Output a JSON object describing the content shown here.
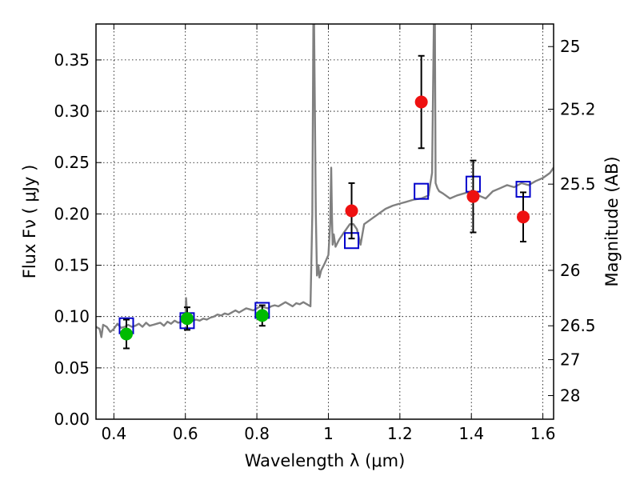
{
  "chart_data": {
    "type": "scatter",
    "xlabel": "Wavelength  λ (μm)",
    "ylabel": "Flux  Fν ( μJy )",
    "y2label": "Magnitude (AB)",
    "xlim": [
      0.35,
      1.63
    ],
    "ylim": [
      0.0,
      0.385
    ],
    "grid": true,
    "x_ticks": [
      {
        "value": 0.4,
        "label": "0.4"
      },
      {
        "value": 0.6,
        "label": "0.6"
      },
      {
        "value": 0.8,
        "label": "0.8"
      },
      {
        "value": 1.0,
        "label": "1"
      },
      {
        "value": 1.2,
        "label": "1.2"
      },
      {
        "value": 1.4,
        "label": "1.4"
      },
      {
        "value": 1.6,
        "label": "1.6"
      }
    ],
    "y_ticks": [
      {
        "value": 0.0,
        "label": "0.00"
      },
      {
        "value": 0.05,
        "label": "0.05"
      },
      {
        "value": 0.1,
        "label": "0.10"
      },
      {
        "value": 0.15,
        "label": "0.15"
      },
      {
        "value": 0.2,
        "label": "0.20"
      },
      {
        "value": 0.25,
        "label": "0.25"
      },
      {
        "value": 0.3,
        "label": "0.30"
      },
      {
        "value": 0.35,
        "label": "0.35"
      }
    ],
    "y2_ticks": [
      {
        "flux": 0.363,
        "label": "25"
      },
      {
        "flux": 0.302,
        "label": "25.2"
      },
      {
        "flux": 0.229,
        "label": "25.5"
      },
      {
        "flux": 0.145,
        "label": "26"
      },
      {
        "flux": 0.091,
        "label": "26.5"
      },
      {
        "flux": 0.058,
        "label": "27"
      },
      {
        "flux": 0.023,
        "label": "28"
      }
    ],
    "series": [
      {
        "kind": "line",
        "color": "#808080",
        "x": [
          0.35,
          0.36,
          0.365,
          0.37,
          0.38,
          0.39,
          0.4,
          0.41,
          0.42,
          0.43,
          0.44,
          0.45,
          0.46,
          0.47,
          0.48,
          0.49,
          0.5,
          0.51,
          0.52,
          0.53,
          0.54,
          0.55,
          0.56,
          0.57,
          0.58,
          0.59,
          0.6,
          0.602,
          0.605,
          0.61,
          0.62,
          0.63,
          0.64,
          0.65,
          0.66,
          0.67,
          0.68,
          0.69,
          0.7,
          0.71,
          0.72,
          0.73,
          0.74,
          0.75,
          0.76,
          0.77,
          0.78,
          0.79,
          0.8,
          0.81,
          0.82,
          0.83,
          0.84,
          0.85,
          0.86,
          0.87,
          0.88,
          0.89,
          0.9,
          0.91,
          0.92,
          0.93,
          0.94,
          0.95,
          0.955,
          0.958,
          0.96,
          0.965,
          0.968,
          0.972,
          0.975,
          0.98,
          0.99,
          1.0,
          1.005,
          1.008,
          1.01,
          1.012,
          1.015,
          1.02,
          1.03,
          1.04,
          1.05,
          1.06,
          1.07,
          1.08,
          1.09,
          1.1,
          1.12,
          1.14,
          1.16,
          1.18,
          1.2,
          1.22,
          1.24,
          1.26,
          1.28,
          1.29,
          1.295,
          1.298,
          1.3,
          1.305,
          1.31,
          1.32,
          1.34,
          1.36,
          1.38,
          1.4,
          1.42,
          1.44,
          1.46,
          1.48,
          1.5,
          1.52,
          1.54,
          1.56,
          1.58,
          1.6,
          1.62,
          1.63
        ],
        "y": [
          0.09,
          0.088,
          0.08,
          0.092,
          0.09,
          0.085,
          0.088,
          0.093,
          0.089,
          0.09,
          0.092,
          0.09,
          0.091,
          0.093,
          0.09,
          0.094,
          0.091,
          0.092,
          0.093,
          0.094,
          0.091,
          0.095,
          0.093,
          0.096,
          0.094,
          0.095,
          0.097,
          0.118,
          0.1,
          0.098,
          0.096,
          0.097,
          0.096,
          0.098,
          0.097,
          0.099,
          0.1,
          0.102,
          0.101,
          0.103,
          0.102,
          0.104,
          0.106,
          0.104,
          0.106,
          0.108,
          0.107,
          0.106,
          0.108,
          0.11,
          0.109,
          0.108,
          0.11,
          0.111,
          0.11,
          0.112,
          0.114,
          0.112,
          0.11,
          0.113,
          0.112,
          0.114,
          0.112,
          0.11,
          0.2,
          0.385,
          0.385,
          0.2,
          0.14,
          0.15,
          0.138,
          0.145,
          0.152,
          0.16,
          0.19,
          0.245,
          0.2,
          0.17,
          0.18,
          0.168,
          0.175,
          0.18,
          0.185,
          0.19,
          0.19,
          0.185,
          0.17,
          0.19,
          0.195,
          0.2,
          0.205,
          0.208,
          0.21,
          0.212,
          0.214,
          0.215,
          0.218,
          0.24,
          0.385,
          0.385,
          0.23,
          0.225,
          0.222,
          0.22,
          0.215,
          0.218,
          0.22,
          0.222,
          0.218,
          0.215,
          0.222,
          0.225,
          0.228,
          0.226,
          0.23,
          0.228,
          0.232,
          0.235,
          0.24,
          0.245
        ]
      },
      {
        "kind": "model",
        "marker": "open-square",
        "color": "#0000cc",
        "x": [
          0.435,
          0.605,
          0.815,
          1.065,
          1.26,
          1.405,
          1.545
        ],
        "y": [
          0.091,
          0.096,
          0.106,
          0.174,
          0.222,
          0.229,
          0.224
        ]
      },
      {
        "kind": "observed",
        "marker": "filled-circle",
        "color": "#00bb00",
        "x": [
          0.435,
          0.605,
          0.815
        ],
        "y": [
          0.083,
          0.098,
          0.101
        ],
        "err": [
          0.014,
          0.011,
          0.01
        ]
      },
      {
        "kind": "observed",
        "marker": "filled-circle",
        "color": "#ee1111",
        "x": [
          1.065,
          1.26,
          1.405,
          1.545
        ],
        "y": [
          0.203,
          0.309,
          0.217,
          0.197
        ],
        "err": [
          0.027,
          0.045,
          0.035,
          0.024
        ]
      }
    ]
  }
}
